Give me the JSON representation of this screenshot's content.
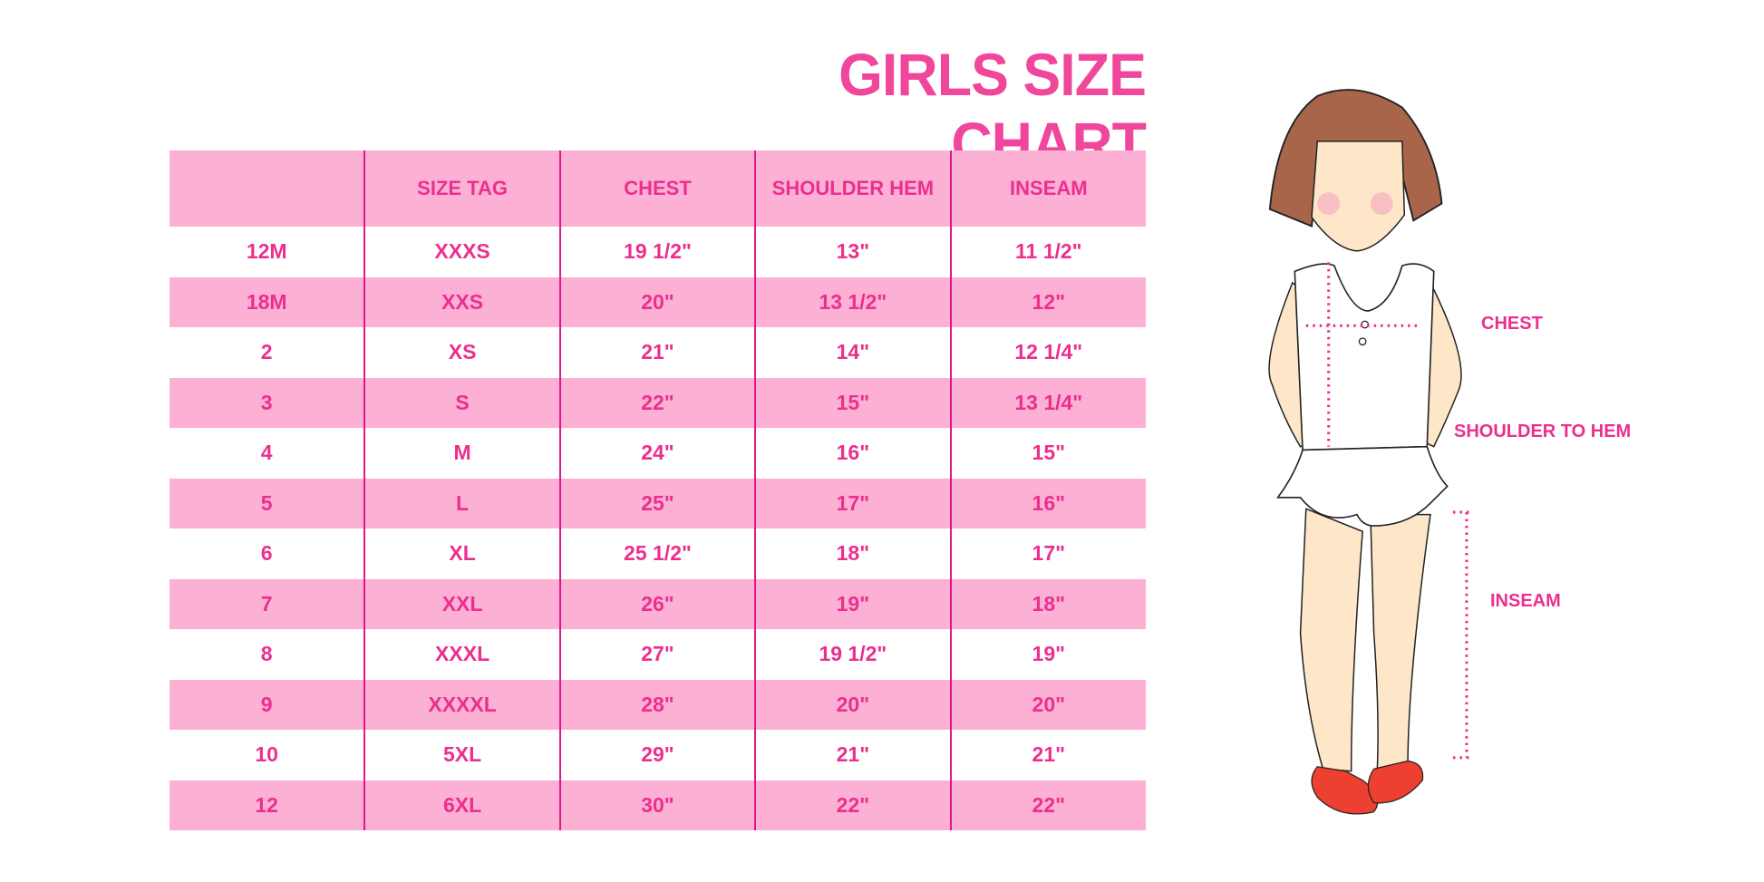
{
  "title": "GIRLS SIZE CHART",
  "table": {
    "headers": [
      "",
      "SIZE TAG",
      "CHEST",
      "SHOULDER HEM",
      "INSEAM"
    ],
    "rows": [
      [
        "12M",
        "XXXS",
        "19 1/2\"",
        "13\"",
        "11 1/2\""
      ],
      [
        "18M",
        "XXS",
        "20\"",
        "13 1/2\"",
        "12\""
      ],
      [
        "2",
        "XS",
        "21\"",
        "14\"",
        "12 1/4\""
      ],
      [
        "3",
        "S",
        "22\"",
        "15\"",
        "13 1/4\""
      ],
      [
        "4",
        "M",
        "24\"",
        "16\"",
        "15\""
      ],
      [
        "5",
        "L",
        "25\"",
        "17\"",
        "16\""
      ],
      [
        "6",
        "XL",
        "25 1/2\"",
        "18\"",
        "17\""
      ],
      [
        "7",
        "XXL",
        "26\"",
        "19\"",
        "18\""
      ],
      [
        "8",
        "XXXL",
        "27\"",
        "19 1/2\"",
        "19\""
      ],
      [
        "9",
        "XXXXL",
        "28\"",
        "20\"",
        "20\""
      ],
      [
        "10",
        "5XL",
        "29\"",
        "21\"",
        "21\""
      ],
      [
        "12",
        "6XL",
        "30\"",
        "22\"",
        "22\""
      ]
    ]
  },
  "figure": {
    "labels": {
      "chest": "CHEST",
      "shoulder_to_hem": "SHOULDER TO HEM",
      "inseam": "INSEAM"
    }
  },
  "colors": {
    "accent": "#ec2f8f",
    "row_fill": "#fbb0d4",
    "divider": "#e0168a"
  }
}
